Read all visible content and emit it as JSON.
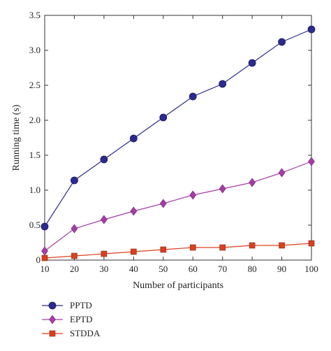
{
  "chart_data": {
    "type": "line",
    "title": "",
    "xlabel": "Number of participants",
    "ylabel": "Running time (s)",
    "x": [
      10,
      20,
      30,
      40,
      50,
      60,
      70,
      80,
      90,
      100
    ],
    "xlim": [
      10,
      100
    ],
    "ylim": [
      0,
      3.5
    ],
    "xticks": [
      "10",
      "20",
      "30",
      "40",
      "50",
      "60",
      "70",
      "80",
      "90",
      "100"
    ],
    "yticks": [
      "0",
      "0.5",
      "1.0",
      "1.5",
      "2.0",
      "2.5",
      "3.0",
      "3.5"
    ],
    "grid": false,
    "legend_position": "below",
    "series": [
      {
        "name": "PPTD",
        "marker": "circle",
        "color": "#2b2b8f",
        "values": [
          0.48,
          1.14,
          1.44,
          1.74,
          2.04,
          2.34,
          2.52,
          2.82,
          3.12,
          3.3
        ]
      },
      {
        "name": "EPTD",
        "marker": "diamond",
        "color": "#a63da6",
        "values": [
          0.13,
          0.45,
          0.58,
          0.7,
          0.81,
          0.93,
          1.02,
          1.11,
          1.25,
          1.41
        ]
      },
      {
        "name": "STDDA",
        "marker": "square",
        "color": "#d9401f",
        "values": [
          0.03,
          0.06,
          0.09,
          0.12,
          0.15,
          0.18,
          0.18,
          0.21,
          0.21,
          0.24
        ]
      }
    ]
  }
}
